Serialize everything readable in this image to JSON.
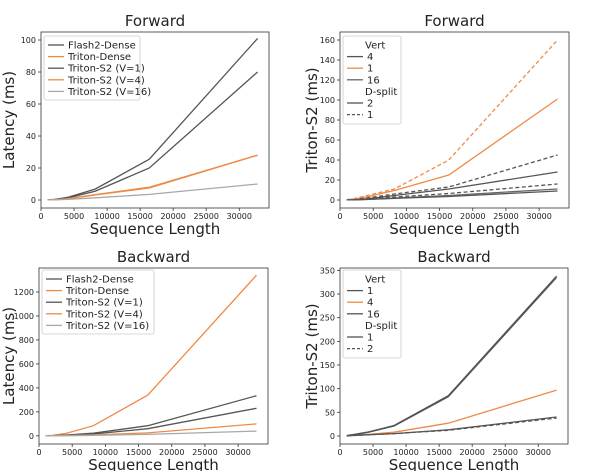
{
  "chart_data": [
    {
      "type": "line",
      "title": "Forward",
      "xlabel": "Sequence Length",
      "ylabel": "Latency (ms)",
      "xlim": [
        0,
        34500
      ],
      "ylim": [
        -5,
        105
      ],
      "xticks": [
        0,
        5000,
        10000,
        15000,
        20000,
        25000,
        30000
      ],
      "yticks": [
        0,
        20,
        40,
        60,
        80,
        100
      ],
      "legend_position": "top-left",
      "x": [
        1024,
        2048,
        4096,
        8192,
        16384,
        32768
      ],
      "series": [
        {
          "name": "Flash2-Dense",
          "color": "#555555",
          "dash": "solid",
          "values": [
            0.1,
            0.3,
            1.3,
            5.5,
            20,
            80
          ]
        },
        {
          "name": "Triton-Dense",
          "color": "#ef8a46",
          "dash": "solid",
          "values": [
            0.1,
            0.2,
            0.9,
            3.3,
            8,
            28
          ]
        },
        {
          "name": "Triton-S2 (V=1)",
          "color": "#555555",
          "dash": "solid",
          "values": [
            0.1,
            0.4,
            1.7,
            6.8,
            25.5,
            101
          ]
        },
        {
          "name": "Triton-S2 (V=4)",
          "color": "#ef8a46",
          "dash": "solid",
          "values": [
            0.1,
            0.2,
            0.8,
            3.1,
            7.5,
            28
          ]
        },
        {
          "name": "Triton-S2 (V=16)",
          "color": "#a8a8a8",
          "dash": "solid",
          "values": [
            0.05,
            0.1,
            0.4,
            1.4,
            3.5,
            10
          ]
        }
      ]
    },
    {
      "type": "line",
      "title": "Forward",
      "xlabel": "Sequence Length",
      "ylabel": "Triton-S2 (ms)",
      "xlim": [
        0,
        34500
      ],
      "ylim": [
        -8,
        168
      ],
      "xticks": [
        0,
        5000,
        10000,
        15000,
        20000,
        25000,
        30000
      ],
      "yticks": [
        0,
        20,
        40,
        60,
        80,
        100,
        120,
        140,
        160
      ],
      "legend_position": "top-left",
      "legend_headers": [
        "Vert",
        "D-split"
      ],
      "x": [
        1024,
        2048,
        4096,
        8192,
        16384,
        32768
      ],
      "series": [
        {
          "name": "4",
          "group": "Vert",
          "color": "#555555",
          "dash": "solid",
          "values": [
            0.1,
            0.3,
            1.2,
            4.5,
            11,
            28
          ]
        },
        {
          "name": "1",
          "group": "Vert",
          "color": "#ef8a46",
          "dash": "solid",
          "values": [
            0.2,
            0.8,
            3.2,
            9.5,
            25,
            101
          ]
        },
        {
          "name": "16",
          "group": "Vert",
          "color": "#666666",
          "dash": "solid",
          "values": [
            0.05,
            0.2,
            0.6,
            2,
            4.5,
            11
          ]
        },
        {
          "name": "2",
          "group": "D-split",
          "color": "#555555",
          "dash": "solid",
          "values": [
            0.05,
            0.15,
            0.5,
            1.6,
            3.5,
            9
          ]
        },
        {
          "name": "1",
          "group": "D-split",
          "color": "#555555",
          "dash": "dashed",
          "values": [
            0.1,
            0.5,
            2,
            6,
            13,
            45
          ]
        },
        {
          "name": "",
          "group": "",
          "color": "#ef8a46",
          "dash": "dashed",
          "values": [
            0.3,
            1.2,
            4.5,
            11,
            40,
            160
          ]
        },
        {
          "name": "",
          "group": "",
          "color": "#555555",
          "dash": "dashed",
          "values": [
            0.1,
            0.3,
            1,
            3,
            6.5,
            16
          ]
        }
      ]
    },
    {
      "type": "line",
      "title": "Backward",
      "xlabel": "Sequence Length",
      "ylabel": "Latency (ms)",
      "xlim": [
        0,
        34500
      ],
      "ylim": [
        -68,
        1400
      ],
      "xticks": [
        0,
        5000,
        10000,
        15000,
        20000,
        25000,
        30000
      ],
      "yticks": [
        0,
        200,
        400,
        600,
        800,
        1000,
        1200
      ],
      "legend_position": "top-left",
      "x": [
        1024,
        2048,
        4096,
        8192,
        16384,
        32768
      ],
      "series": [
        {
          "name": "Flash2-Dense",
          "color": "#555555",
          "dash": "solid",
          "values": [
            0.5,
            1.5,
            5,
            15,
            60,
            230
          ]
        },
        {
          "name": "Triton-Dense",
          "color": "#ef8a46",
          "dash": "solid",
          "values": [
            1,
            4,
            20,
            85,
            340,
            1340
          ]
        },
        {
          "name": "Triton-S2 (V=1)",
          "color": "#555555",
          "dash": "solid",
          "values": [
            0.7,
            2,
            7,
            22,
            85,
            335
          ]
        },
        {
          "name": "Triton-S2 (V=4)",
          "color": "#ef8a46",
          "dash": "solid",
          "values": [
            0.3,
            1,
            3,
            8,
            25,
            100
          ]
        },
        {
          "name": "Triton-S2 (V=16)",
          "color": "#a8a8a8",
          "dash": "solid",
          "values": [
            0.2,
            0.5,
            1.5,
            4,
            12,
            40
          ]
        }
      ]
    },
    {
      "type": "line",
      "title": "Backward",
      "xlabel": "Sequence Length",
      "ylabel": "Triton-S2 (ms)",
      "xlim": [
        0,
        34500
      ],
      "ylim": [
        -17,
        355
      ],
      "xticks": [
        0,
        5000,
        10000,
        15000,
        20000,
        25000,
        30000
      ],
      "yticks": [
        0,
        50,
        100,
        150,
        200,
        250,
        300,
        350
      ],
      "legend_position": "top-left",
      "legend_headers": [
        "Vert",
        "D-split"
      ],
      "x": [
        1024,
        2048,
        4096,
        8192,
        16384,
        32768
      ],
      "series": [
        {
          "name": "1",
          "group": "Vert",
          "color": "#555555",
          "dash": "solid",
          "values": [
            1,
            3,
            8,
            22,
            85,
            338
          ]
        },
        {
          "name": "4",
          "group": "Vert",
          "color": "#ef8a46",
          "dash": "solid",
          "values": [
            0.5,
            1.5,
            3,
            8,
            27,
            97
          ]
        },
        {
          "name": "16",
          "group": "Vert",
          "color": "#555555",
          "dash": "solid",
          "values": [
            0.3,
            1,
            2.5,
            5,
            13,
            40
          ]
        },
        {
          "name": "1",
          "group": "D-split",
          "color": "#555555",
          "dash": "solid",
          "values": [
            0.8,
            2.5,
            7,
            21,
            83,
            335
          ]
        },
        {
          "name": "2",
          "group": "D-split",
          "color": "#555555",
          "dash": "dashed",
          "values": [
            0.3,
            1,
            2.5,
            5,
            12,
            38
          ]
        }
      ]
    }
  ]
}
